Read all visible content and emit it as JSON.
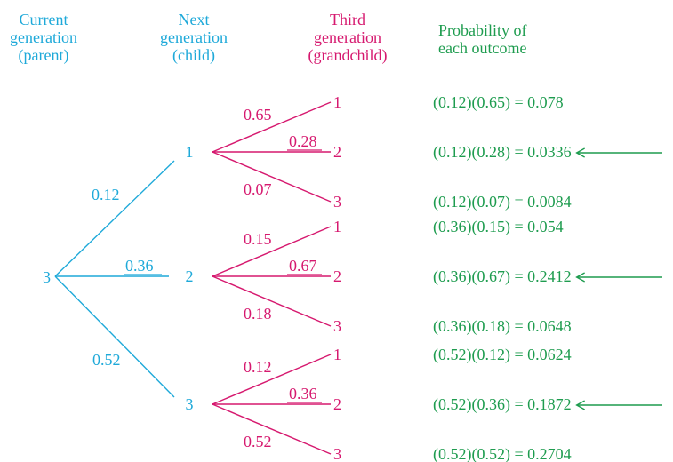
{
  "headers": {
    "parent": [
      "Current",
      "generation",
      "(parent)"
    ],
    "child": [
      "Next",
      "generation",
      "(child)"
    ],
    "grandchild": [
      "Third",
      "generation",
      "(grandchild)"
    ],
    "probability": [
      "Probability of",
      "each outcome"
    ]
  },
  "root": "3",
  "colors": {
    "parent_branch": "#1ea9d9",
    "child_branch": "#d6196f",
    "outcome": "#1e9c4f"
  },
  "children": [
    {
      "label": "1",
      "prob": "0.12",
      "grandchildren": [
        {
          "label": "1",
          "prob": "0.65",
          "outcome": "(0.12)(0.65) = 0.078",
          "highlight": false
        },
        {
          "label": "2",
          "prob": "0.28",
          "outcome": "(0.12)(0.28) = 0.0336",
          "highlight": true
        },
        {
          "label": "3",
          "prob": "0.07",
          "outcome": "(0.12)(0.07) = 0.0084",
          "highlight": false
        }
      ]
    },
    {
      "label": "2",
      "prob": "0.36",
      "grandchildren": [
        {
          "label": "1",
          "prob": "0.15",
          "outcome": "(0.36)(0.15) = 0.054",
          "highlight": false
        },
        {
          "label": "2",
          "prob": "0.67",
          "outcome": "(0.36)(0.67) = 0.2412",
          "highlight": true
        },
        {
          "label": "3",
          "prob": "0.18",
          "outcome": "(0.36)(0.18) = 0.0648",
          "highlight": false
        }
      ]
    },
    {
      "label": "3",
      "prob": "0.52",
      "grandchildren": [
        {
          "label": "1",
          "prob": "0.12",
          "outcome": "(0.52)(0.12) = 0.0624",
          "highlight": false
        },
        {
          "label": "2",
          "prob": "0.36",
          "outcome": "(0.52)(0.36) = 0.1872",
          "highlight": true
        },
        {
          "label": "3",
          "prob": "0.52",
          "outcome": "(0.52)(0.52) = 0.2704",
          "highlight": false
        }
      ]
    }
  ]
}
